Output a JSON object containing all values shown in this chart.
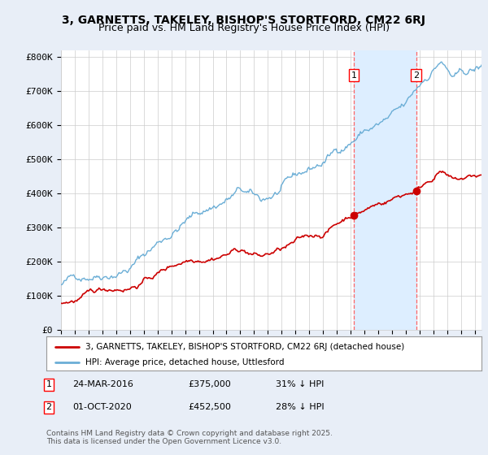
{
  "title1": "3, GARNETTS, TAKELEY, BISHOP'S STORTFORD, CM22 6RJ",
  "title2": "Price paid vs. HM Land Registry's House Price Index (HPI)",
  "legend1": "3, GARNETTS, TAKELEY, BISHOP'S STORTFORD, CM22 6RJ (detached house)",
  "legend2": "HPI: Average price, detached house, Uttlesford",
  "ylabel_ticks": [
    "£0",
    "£100K",
    "£200K",
    "£300K",
    "£400K",
    "£500K",
    "£600K",
    "£700K",
    "£800K"
  ],
  "ytick_values": [
    0,
    100000,
    200000,
    300000,
    400000,
    500000,
    600000,
    700000,
    800000
  ],
  "ylim": [
    0,
    820000
  ],
  "xlim_start": 1995.0,
  "xlim_end": 2025.5,
  "hpi_color": "#6baed6",
  "price_color": "#cc0000",
  "marker1_date": 2016.22,
  "marker2_date": 2020.75,
  "background_color": "#e8eef7",
  "plot_bg_color": "#ffffff",
  "grid_color": "#cccccc",
  "shade_color": "#ddeeff",
  "title_fontsize": 10,
  "subtitle_fontsize": 9,
  "tick_fontsize": 8
}
